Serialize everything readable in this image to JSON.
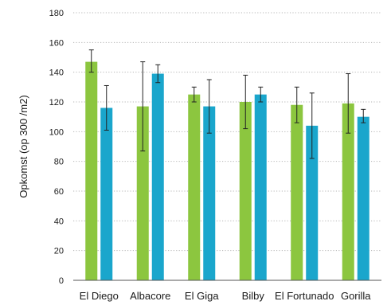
{
  "chart_data": {
    "type": "bar",
    "title": "",
    "xlabel": "",
    "ylabel": "Opkomst (op 300 /m2)",
    "ylim": [
      0,
      180
    ],
    "yticks": [
      0,
      20,
      40,
      60,
      80,
      100,
      120,
      140,
      160,
      180
    ],
    "grid": "horizontal-dotted",
    "legend": "none",
    "categories": [
      "El Diego",
      "Albacore",
      "El Giga",
      "Bilby",
      "El Fortunado",
      "Gorilla"
    ],
    "series": [
      {
        "color": "#8cc63f",
        "values": [
          147,
          117,
          125,
          120,
          118,
          119
        ],
        "error_low": [
          140,
          87,
          120,
          102,
          106,
          99
        ],
        "error_high": [
          155,
          147,
          130,
          138,
          130,
          139
        ]
      },
      {
        "color": "#1aa6cc",
        "values": [
          116,
          139,
          117,
          125,
          104,
          110
        ],
        "error_low": [
          101,
          133,
          99,
          120,
          82,
          106
        ],
        "error_high": [
          131,
          145,
          135,
          130,
          126,
          115
        ]
      }
    ]
  }
}
